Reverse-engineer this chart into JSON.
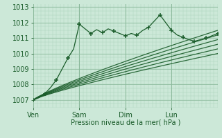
{
  "xlabel": "Pression niveau de la mer( hPa )",
  "bg_color": "#cce8d8",
  "grid_color_major": "#8ab89a",
  "grid_color_minor": "#aad0ba",
  "line_color": "#1a5c2a",
  "ylim": [
    1006.5,
    1013.2
  ],
  "yticks": [
    1007,
    1008,
    1009,
    1010,
    1011,
    1012,
    1013
  ],
  "xlim": [
    0,
    96
  ],
  "xtick_positions": [
    0,
    24,
    48,
    72
  ],
  "xtick_labels": [
    "Ven",
    "Sam",
    "Dim",
    "Lun"
  ],
  "ensemble_lines": [
    {
      "x": [
        0,
        96
      ],
      "y": [
        1007.0,
        1011.5
      ]
    },
    {
      "x": [
        0,
        96
      ],
      "y": [
        1007.0,
        1011.2
      ]
    },
    {
      "x": [
        0,
        96
      ],
      "y": [
        1007.0,
        1010.9
      ]
    },
    {
      "x": [
        0,
        96
      ],
      "y": [
        1007.0,
        1010.6
      ]
    },
    {
      "x": [
        0,
        96
      ],
      "y": [
        1007.0,
        1010.3
      ]
    },
    {
      "x": [
        0,
        96
      ],
      "y": [
        1007.0,
        1010.0
      ]
    }
  ],
  "observed_x": [
    0,
    3,
    6,
    9,
    12,
    15,
    18,
    21,
    24,
    27,
    30,
    33,
    36,
    39,
    42,
    45,
    48,
    51,
    54,
    57,
    60,
    63,
    66,
    69,
    72,
    75,
    78,
    81,
    84,
    87,
    90,
    93,
    96
  ],
  "observed_y": [
    1007.0,
    1007.15,
    1007.4,
    1007.8,
    1008.3,
    1009.0,
    1009.7,
    1010.3,
    1011.9,
    1011.6,
    1011.3,
    1011.55,
    1011.35,
    1011.6,
    1011.45,
    1011.3,
    1011.15,
    1011.3,
    1011.2,
    1011.5,
    1011.7,
    1012.1,
    1012.5,
    1012.0,
    1011.5,
    1011.2,
    1011.05,
    1010.9,
    1010.8,
    1010.9,
    1011.0,
    1011.15,
    1011.3
  ],
  "marker_x": [
    0,
    6,
    12,
    18,
    24,
    30,
    36,
    42,
    48,
    54,
    60,
    66,
    72,
    78,
    84,
    90,
    96
  ],
  "marker_y": [
    1007.0,
    1007.4,
    1008.3,
    1009.7,
    1011.9,
    1011.3,
    1011.35,
    1011.45,
    1011.15,
    1011.2,
    1011.7,
    1012.5,
    1011.5,
    1011.05,
    1010.8,
    1011.0,
    1011.3
  ]
}
